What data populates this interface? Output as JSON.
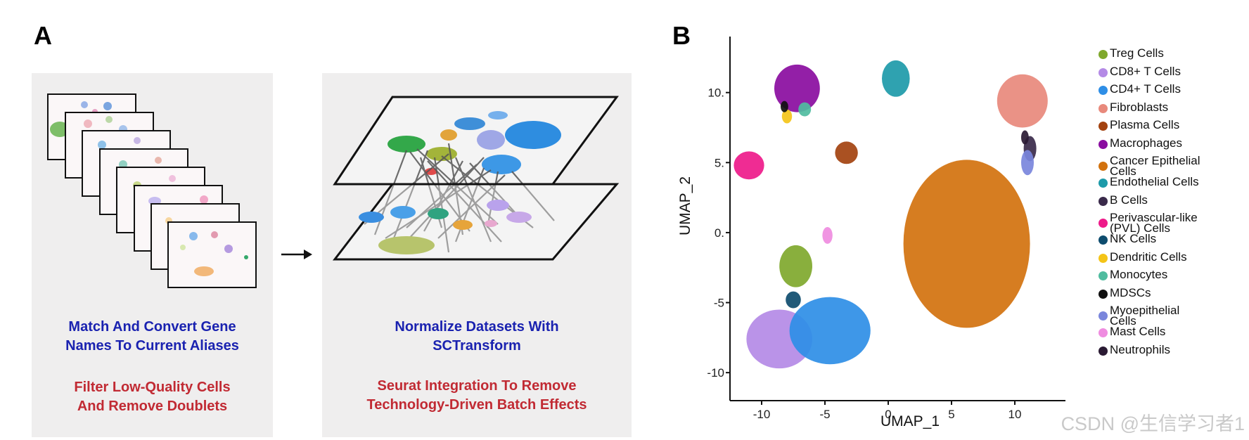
{
  "panel_a": {
    "label": "A",
    "left_box": {
      "caption_blue": [
        "Match And Convert Gene",
        "Names To Current Aliases"
      ],
      "caption_red": [
        "Filter Low-Quality Cells",
        "And Remove Doublets"
      ]
    },
    "right_box": {
      "caption_blue": [
        "Normalize Datasets With",
        "SCTransform"
      ],
      "caption_red": [
        "Seurat Integration To Remove",
        "Technology-Driven Batch Effects"
      ]
    }
  },
  "panel_b": {
    "label": "B"
  },
  "chart_data": {
    "type": "scatter",
    "title": "",
    "xlabel": "UMAP_1",
    "ylabel": "UMAP_2",
    "xlim": [
      -12.5,
      14
    ],
    "ylim": [
      -12,
      14
    ],
    "x_ticks": [
      {
        "value": -10,
        "label": "-10"
      },
      {
        "value": -5,
        "label": "-5"
      },
      {
        "value": 0,
        "label": "0"
      },
      {
        "value": 5,
        "label": "5"
      },
      {
        "value": 10,
        "label": "10"
      }
    ],
    "y_ticks": [
      {
        "value": -10,
        "label": "-10"
      },
      {
        "value": -5,
        "label": "-5"
      },
      {
        "value": 0,
        "label": "0."
      },
      {
        "value": 5,
        "label": "5."
      },
      {
        "value": 10,
        "label": "10."
      }
    ],
    "clusters": [
      {
        "name": "Treg Cells",
        "color": "#7fa82c",
        "cx": -7.3,
        "cy": -2.4,
        "rx": 1.3,
        "ry": 1.5
      },
      {
        "name": "CD8+ T Cells",
        "color": "#b48ae6",
        "cx": -8.6,
        "cy": -7.6,
        "rx": 2.6,
        "ry": 2.1
      },
      {
        "name": "CD4+ T Cells",
        "color": "#2e8ee6",
        "cx": -4.6,
        "cy": -7.0,
        "rx": 3.2,
        "ry": 2.4
      },
      {
        "name": "Fibroblasts",
        "color": "#e8897c",
        "cx": 10.6,
        "cy": 9.4,
        "rx": 2.0,
        "ry": 1.9
      },
      {
        "name": "Plasma Cells",
        "color": "#a3420f",
        "cx": -3.3,
        "cy": 5.7,
        "rx": 0.9,
        "ry": 0.8
      },
      {
        "name": "Macrophages",
        "color": "#8a0ca0",
        "cx": -7.2,
        "cy": 10.3,
        "rx": 1.8,
        "ry": 1.7
      },
      {
        "name": "Cancer Epithelial Cells",
        "color": "#d2720e",
        "cx": 6.2,
        "cy": -0.8,
        "rx": 5.0,
        "ry": 6.0
      },
      {
        "name": "Endothelial Cells",
        "color": "#1d9aa9",
        "cx": 0.6,
        "cy": 11.0,
        "rx": 1.1,
        "ry": 1.3
      },
      {
        "name": "B Cells",
        "color": "#3a2a4a",
        "cx": 11.2,
        "cy": 6.0,
        "rx": 0.5,
        "ry": 0.9
      },
      {
        "name": "Perivascular-like (PVL) Cells",
        "color": "#ee1a8a",
        "cx": -11.0,
        "cy": 4.8,
        "rx": 1.2,
        "ry": 1.0
      },
      {
        "name": "NK Cells",
        "color": "#0e4c6e",
        "cx": -7.5,
        "cy": -4.8,
        "rx": 0.6,
        "ry": 0.6
      },
      {
        "name": "Dendritic Cells",
        "color": "#f4c418",
        "cx": -8.0,
        "cy": 8.3,
        "rx": 0.4,
        "ry": 0.5
      },
      {
        "name": "Monocytes",
        "color": "#4fbc9f",
        "cx": -6.6,
        "cy": 8.8,
        "rx": 0.5,
        "ry": 0.5
      },
      {
        "name": "MDSCs",
        "color": "#101010",
        "cx": -8.2,
        "cy": 9.0,
        "rx": 0.3,
        "ry": 0.4
      },
      {
        "name": "Myoepithelial Cells",
        "color": "#7a86dc",
        "cx": 11.0,
        "cy": 5.0,
        "rx": 0.5,
        "ry": 0.9
      },
      {
        "name": "Mast Cells",
        "color": "#ef8ce0",
        "cx": -4.8,
        "cy": -0.2,
        "rx": 0.4,
        "ry": 0.6
      },
      {
        "name": "Neutrophils",
        "color": "#2a1a33",
        "cx": 10.8,
        "cy": 6.8,
        "rx": 0.3,
        "ry": 0.5
      }
    ],
    "legend": [
      {
        "label": "Treg Cells",
        "color": "#7fa82c"
      },
      {
        "label": "CD8+ T Cells",
        "color": "#b48ae6"
      },
      {
        "label": "CD4+ T Cells",
        "color": "#2e8ee6"
      },
      {
        "label": "Fibroblasts",
        "color": "#e8897c"
      },
      {
        "label": "Plasma Cells",
        "color": "#a3420f"
      },
      {
        "label": "Macrophages",
        "color": "#8a0ca0"
      },
      {
        "label": "Cancer Epithelial\nCells",
        "color": "#d2720e"
      },
      {
        "label": "Endothelial Cells",
        "color": "#1d9aa9"
      },
      {
        "label": "B Cells",
        "color": "#3a2a4a"
      },
      {
        "label": "Perivascular-like\n(PVL) Cells",
        "color": "#ee1a8a"
      },
      {
        "label": "NK Cells",
        "color": "#0e4c6e"
      },
      {
        "label": "Dendritic Cells",
        "color": "#f4c418"
      },
      {
        "label": "Monocytes",
        "color": "#4fbc9f"
      },
      {
        "label": "MDSCs",
        "color": "#101010"
      },
      {
        "label": "Myoepithelial\nCells",
        "color": "#7a86dc"
      },
      {
        "label": "Mast Cells",
        "color": "#ef8ce0"
      },
      {
        "label": "Neutrophils",
        "color": "#2a1a33"
      }
    ]
  },
  "watermark": "CSDN @生信学习者1"
}
